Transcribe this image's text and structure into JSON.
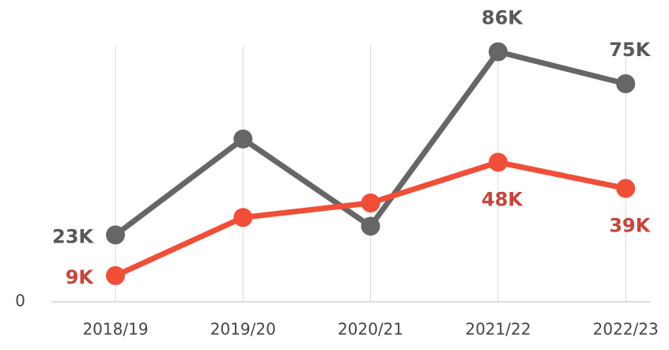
{
  "chart_data": {
    "type": "line",
    "categories": [
      "2018/19",
      "2019/20",
      "2020/21",
      "2021/22",
      "2022/23"
    ],
    "series": [
      {
        "color": "#676566",
        "label_color": "#595959",
        "values": [
          23000,
          56000,
          26000,
          86000,
          75000
        ],
        "value_labels": [
          "23K",
          null,
          null,
          "86K",
          "75K"
        ]
      },
      {
        "color": "#f04e37",
        "label_color": "#c9443a",
        "values": [
          9000,
          29000,
          34000,
          48000,
          39000
        ],
        "value_labels": [
          "9K",
          null,
          null,
          "48K",
          "39K"
        ]
      }
    ],
    "ylim": [
      0,
      100000
    ],
    "yticks": [
      0
    ],
    "grid": true
  }
}
